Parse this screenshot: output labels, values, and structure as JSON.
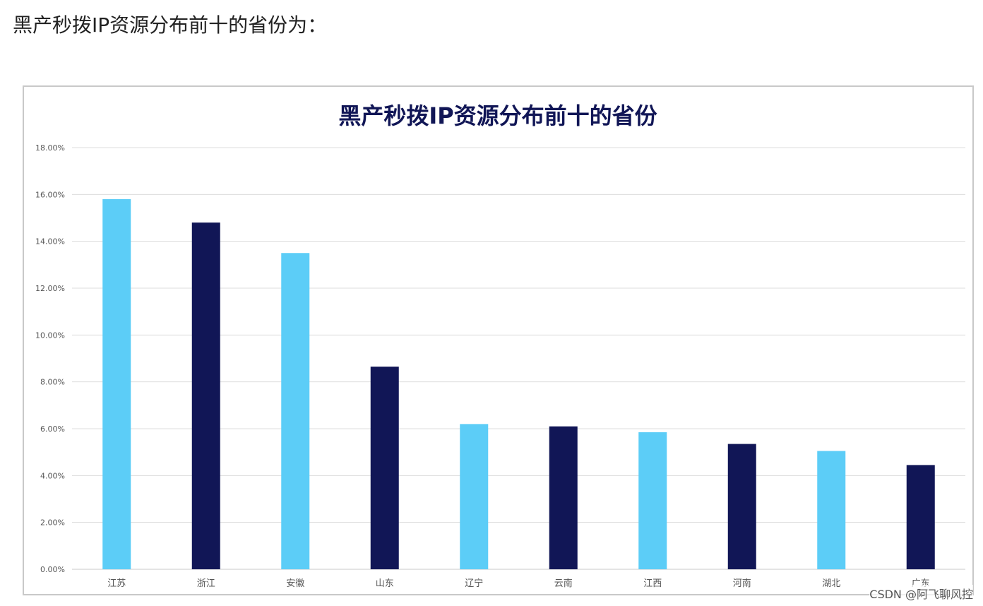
{
  "heading": "黑产秒拨IP资源分布前十的省份为：",
  "watermark": "CSDN @阿飞聊风控",
  "chart_data": {
    "type": "bar",
    "title": "黑产秒拨IP资源分布前十的省份",
    "xlabel": "",
    "ylabel": "",
    "categories": [
      "江苏",
      "浙江",
      "安徽",
      "山东",
      "辽宁",
      "云南",
      "江西",
      "河南",
      "湖北",
      "广东"
    ],
    "values": [
      15.8,
      14.8,
      13.5,
      8.65,
      6.2,
      6.1,
      5.85,
      5.35,
      5.05,
      4.45
    ],
    "ylim": [
      0,
      18
    ],
    "y_ticks": [
      "0.00%",
      "2.00%",
      "4.00%",
      "6.00%",
      "8.00%",
      "10.00%",
      "12.00%",
      "14.00%",
      "16.00%",
      "18.00%"
    ],
    "grid": true,
    "legend": "none",
    "colors": {
      "light": "#5ccdf7",
      "dark": "#111656",
      "grid": "#dcdcdc",
      "title": "#111656"
    }
  }
}
